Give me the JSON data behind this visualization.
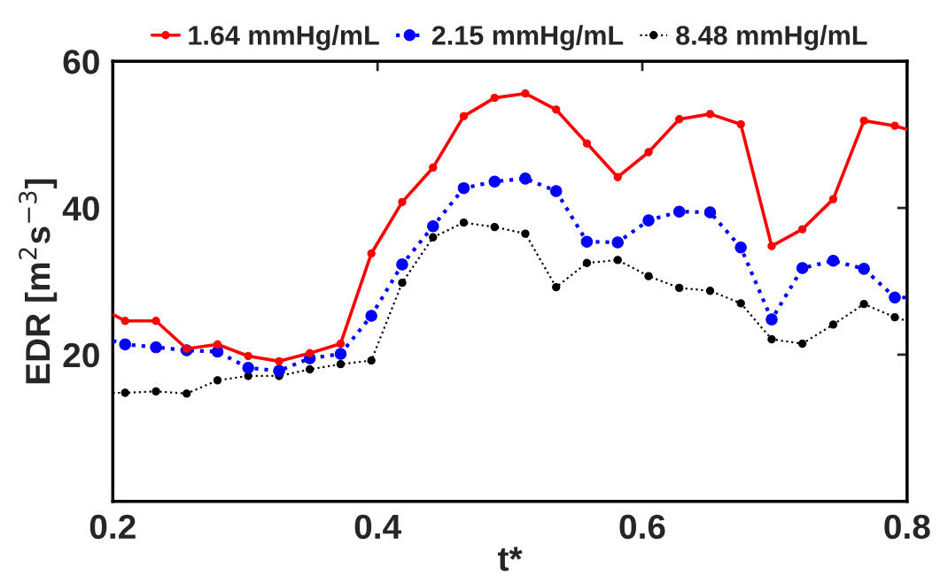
{
  "chart_data": {
    "type": "line",
    "xlabel": "t*",
    "ylabel": "EDR [m$^{2}$s$^{−3}$]",
    "x": [
      0.2,
      0.2093,
      0.2326,
      0.2558,
      0.2791,
      0.3023,
      0.3256,
      0.3488,
      0.3721,
      0.3953,
      0.4186,
      0.4419,
      0.4651,
      0.4884,
      0.5116,
      0.5349,
      0.5581,
      0.5814,
      0.6047,
      0.6279,
      0.6512,
      0.6744,
      0.6977,
      0.7209,
      0.7442,
      0.7674,
      0.7907,
      0.8
    ],
    "series": [
      {
        "name": "1.64 mmHg/mL",
        "color": "#ff0000",
        "line_style": "solid",
        "values": [
          25.5,
          24.6,
          24.6,
          20.8,
          21.4,
          19.8,
          19.1,
          20.2,
          21.5,
          33.8,
          40.8,
          45.5,
          52.5,
          55.0,
          55.6,
          53.4,
          48.8,
          44.2,
          47.6,
          52.1,
          52.8,
          51.4,
          34.8,
          37.1,
          41.2,
          51.9,
          51.2,
          50.7
        ]
      },
      {
        "name": "2.15 mmHg/mL",
        "color": "#0000ff",
        "line_style": "dotted",
        "values": [
          21.9,
          21.4,
          21.0,
          20.6,
          20.4,
          18.2,
          17.8,
          19.5,
          20.1,
          25.3,
          32.3,
          37.5,
          42.7,
          43.6,
          44.0,
          42.3,
          35.4,
          35.3,
          38.3,
          39.5,
          39.4,
          34.6,
          24.8,
          31.8,
          32.8,
          31.7,
          27.8,
          27.8
        ]
      },
      {
        "name": "8.48 mmHg/mL",
        "color": "#000000",
        "line_style": "dotted",
        "values": [
          14.8,
          14.8,
          15.0,
          14.7,
          16.5,
          17.1,
          17.1,
          18.0,
          18.7,
          19.2,
          29.8,
          36.0,
          38.0,
          37.4,
          36.5,
          29.2,
          32.5,
          32.9,
          30.7,
          29.1,
          28.7,
          27.0,
          22.1,
          21.5,
          24.1,
          26.9,
          25.1,
          24.6
        ]
      }
    ],
    "marker": "circle",
    "legend": "top",
    "grid": false,
    "xlim": [
      0.2,
      0.8
    ],
    "xticks": [
      0.2,
      0.4,
      0.6,
      0.8
    ],
    "ylim": [
      0,
      60
    ],
    "yticks": [
      20,
      40,
      60
    ]
  }
}
